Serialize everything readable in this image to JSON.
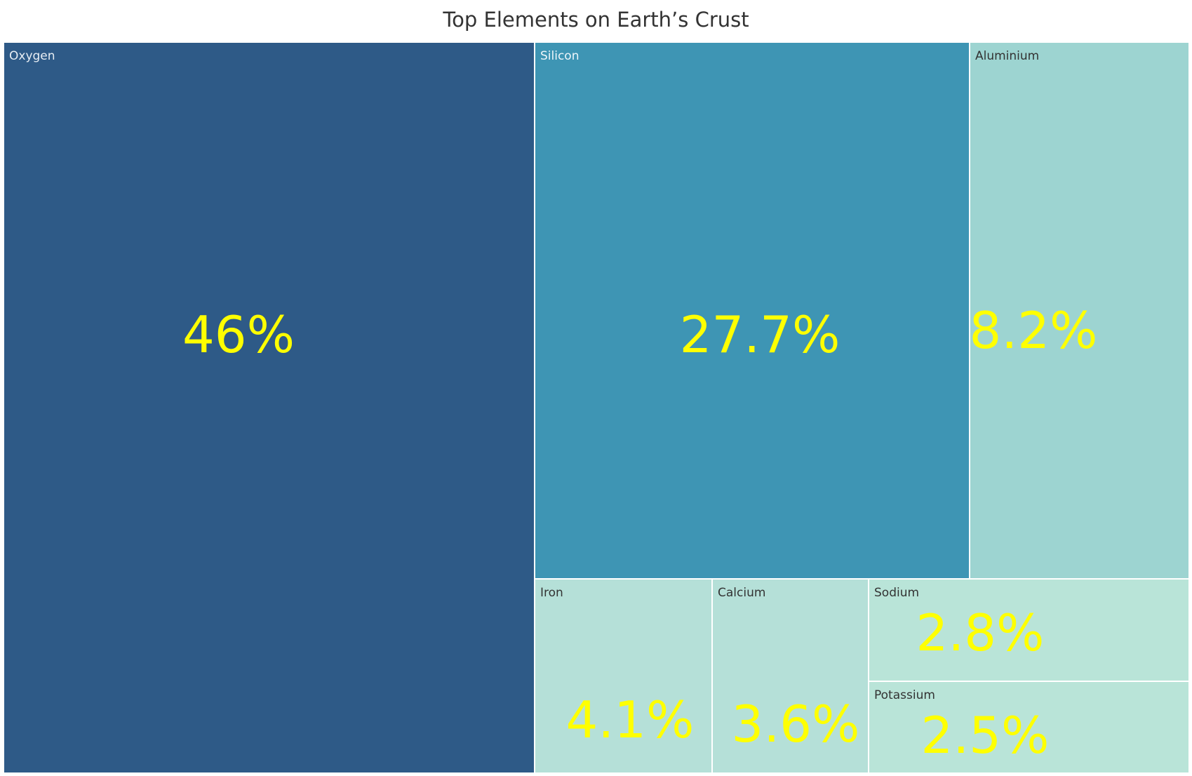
{
  "chart_data": {
    "type": "treemap",
    "title": "Top Elements on Earth’s Crust",
    "items": [
      {
        "name": "Oxygen",
        "value": 46,
        "label": "46%"
      },
      {
        "name": "Silicon",
        "value": 27.7,
        "label": "27.7%"
      },
      {
        "name": "Aluminium",
        "value": 8.2,
        "label": "8.2%"
      },
      {
        "name": "Iron",
        "value": 4.1,
        "label": "4.1%"
      },
      {
        "name": "Calcium",
        "value": 3.6,
        "label": "3.6%"
      },
      {
        "name": "Sodium",
        "value": 2.8,
        "label": "2.8%"
      },
      {
        "name": "Potassium",
        "value": 2.5,
        "label": "2.5%"
      }
    ],
    "colors": {
      "Oxygen": "#2e5a87",
      "Silicon": "#3e95b4",
      "Aluminium": "#9dd4d1",
      "Iron": "#b5e0d8",
      "Calcium": "#b5e0d8",
      "Sodium": "#b9e4d8",
      "Potassium": "#b9e4d8"
    },
    "name_colors": {
      "Oxygen": "#e8eef4",
      "Silicon": "#eef6fa",
      "Aluminium": "#333333",
      "Iron": "#333333",
      "Calcium": "#333333",
      "Sodium": "#333333",
      "Potassium": "#333333"
    },
    "value_color": "#ffff00",
    "legend": "none"
  }
}
